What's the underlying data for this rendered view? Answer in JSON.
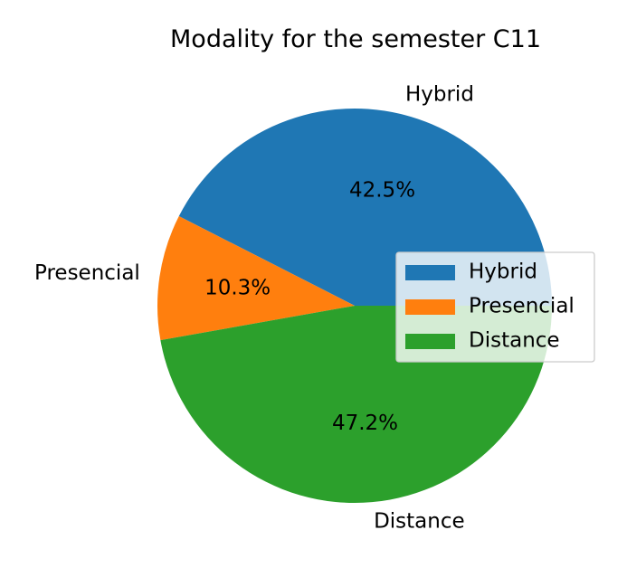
{
  "chart_data": {
    "type": "pie",
    "title": "Modality for the semester C11",
    "categories": [
      "Hybrid",
      "Presencial",
      "Distance"
    ],
    "values": [
      42.5,
      10.3,
      47.2
    ],
    "percent_labels": [
      "42.5%",
      "10.3%",
      "47.2%"
    ],
    "colors": [
      "#1f77b4",
      "#ff7f0e",
      "#2ca02c"
    ],
    "legend": {
      "placement": "right",
      "entries": [
        "Hybrid",
        "Presencial",
        "Distance"
      ]
    }
  }
}
